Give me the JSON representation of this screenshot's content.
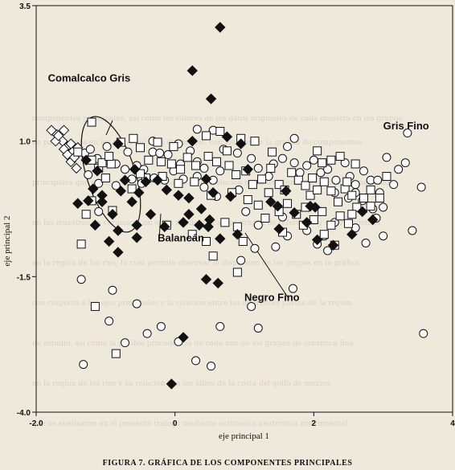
{
  "caption": "FIGURA 7. GRÁFICA DE LOS COMPONENTES PRINCIPALES",
  "chart_data": {
    "type": "scatter",
    "title": "",
    "xlabel": "eje principal 1",
    "ylabel": "eje principal 2",
    "xlim": [
      -2.0,
      4.0
    ],
    "ylim": [
      -4.0,
      3.5
    ],
    "x_ticks": [
      {
        "v": -2.0,
        "label": "-2.0"
      },
      {
        "v": 0,
        "label": "0"
      },
      {
        "v": 2,
        "label": "2"
      },
      {
        "v": 4,
        "label": "4"
      }
    ],
    "y_ticks": [
      {
        "v": 3.5,
        "label": "3.5"
      },
      {
        "v": 1.0,
        "label": "1.0"
      },
      {
        "v": -1.5,
        "label": "-1.5"
      },
      {
        "v": -4.0,
        "label": "-4.0"
      }
    ],
    "group_labels": [
      {
        "text": "Comalcalco Gris",
        "x": -1.83,
        "y": 2.1
      },
      {
        "text": "Gris Fino",
        "x": 3.0,
        "y": 1.22
      },
      {
        "text": "Balancán",
        "x": -0.25,
        "y": -0.85
      },
      {
        "text": "Negro Fino",
        "x": 1.0,
        "y": -1.95
      }
    ],
    "series": [
      {
        "name": "Comalcalco Gris",
        "marker": "diamond",
        "color": "#ffffff",
        "points": [
          [
            -1.78,
            1.2
          ],
          [
            -1.7,
            1.12
          ],
          [
            -1.62,
            1.0
          ],
          [
            -1.55,
            0.9
          ],
          [
            -1.48,
            0.8
          ],
          [
            -1.6,
            1.2
          ],
          [
            -1.72,
            1.0
          ],
          [
            -1.6,
            0.85
          ],
          [
            -1.55,
            0.75
          ],
          [
            -1.5,
            0.62
          ],
          [
            -1.42,
            0.5
          ],
          [
            -1.5,
            0.95
          ],
          [
            -1.4,
            0.88
          ],
          [
            -1.68,
            1.1
          ],
          [
            -1.45,
            0.7
          ]
        ]
      },
      {
        "name": "Gris Fino",
        "marker": "circle",
        "color": "#ffffff",
        "points": [
          [
            -1.3,
            0.78
          ],
          [
            -1.22,
            0.85
          ],
          [
            -1.12,
            0.68
          ],
          [
            -0.98,
            0.9
          ],
          [
            -0.85,
            0.58
          ],
          [
            -0.68,
            0.8
          ],
          [
            -0.72,
            0.48
          ],
          [
            -0.55,
            0.55
          ],
          [
            -0.45,
            0.48
          ],
          [
            -0.32,
            0.8
          ],
          [
            -0.22,
            0.78
          ],
          [
            -0.1,
            0.75
          ],
          [
            0.08,
            0.58
          ],
          [
            0.22,
            0.82
          ],
          [
            0.32,
            0.62
          ],
          [
            0.42,
            0.5
          ],
          [
            0.55,
            0.28
          ],
          [
            0.65,
            0.45
          ],
          [
            0.7,
            0.85
          ],
          [
            0.9,
            0.78
          ],
          [
            1.1,
            0.68
          ],
          [
            1.2,
            0.5
          ],
          [
            1.35,
            0.35
          ],
          [
            1.42,
            0.58
          ],
          [
            1.55,
            0.68
          ],
          [
            1.62,
            0.9
          ],
          [
            1.72,
            0.6
          ],
          [
            1.8,
            0.42
          ],
          [
            1.9,
            0.55
          ],
          [
            2.0,
            0.65
          ],
          [
            2.1,
            0.42
          ],
          [
            2.2,
            0.48
          ],
          [
            2.32,
            0.28
          ],
          [
            2.45,
            0.6
          ],
          [
            2.52,
            0.35
          ],
          [
            2.6,
            0.2
          ],
          [
            2.72,
            0.45
          ],
          [
            2.82,
            0.28
          ],
          [
            2.6,
            0.05
          ],
          [
            2.7,
            -0.1
          ],
          [
            2.85,
            -0.25
          ],
          [
            2.5,
            -0.05
          ],
          [
            2.3,
            0.05
          ],
          [
            2.95,
            0.05
          ],
          [
            3.0,
            -0.22
          ],
          [
            2.92,
            0.28
          ],
          [
            3.22,
            0.48
          ],
          [
            3.42,
            -0.65
          ],
          [
            3.55,
            0.15
          ],
          [
            2.9,
            -0.42
          ],
          [
            2.6,
            -0.6
          ],
          [
            2.3,
            -0.5
          ],
          [
            2.15,
            -0.75
          ],
          [
            2.05,
            -0.9
          ],
          [
            1.9,
            -0.65
          ],
          [
            1.62,
            -0.75
          ],
          [
            1.55,
            -0.4
          ],
          [
            1.2,
            -0.55
          ],
          [
            1.02,
            -0.3
          ],
          [
            0.92,
            0.1
          ],
          [
            0.6,
            -0.02
          ],
          [
            0.42,
            0.15
          ],
          [
            0.32,
            0.35
          ],
          [
            0.12,
            0.3
          ],
          [
            -0.02,
            0.45
          ],
          [
            -0.15,
            0.28
          ],
          [
            -0.3,
            0.32
          ],
          [
            -0.48,
            0.22
          ],
          [
            -0.62,
            0.3
          ],
          [
            -0.85,
            0.18
          ],
          [
            -1.1,
            0.22
          ],
          [
            -1.25,
            0.38
          ],
          [
            2.75,
            -0.88
          ],
          [
            3.0,
            -0.75
          ],
          [
            2.2,
            -1.02
          ],
          [
            1.45,
            -0.95
          ],
          [
            1.15,
            -0.98
          ],
          [
            0.95,
            -1.2
          ],
          [
            1.72,
            1.05
          ],
          [
            0.55,
            1.2
          ],
          [
            0.32,
            1.22
          ],
          [
            0.05,
            0.95
          ],
          [
            -0.32,
            1.0
          ],
          [
            3.35,
            1.15
          ],
          [
            3.05,
            0.7
          ],
          [
            3.32,
            0.6
          ],
          [
            3.15,
            0.2
          ],
          [
            0.65,
            -2.42
          ],
          [
            1.1,
            -2.05
          ],
          [
            0.52,
            -3.15
          ],
          [
            0.3,
            -3.05
          ],
          [
            -0.4,
            -2.55
          ],
          [
            -0.72,
            -2.72
          ],
          [
            -0.95,
            -2.32
          ],
          [
            -0.9,
            -1.75
          ],
          [
            -1.32,
            -3.12
          ],
          [
            -1.35,
            -1.55
          ],
          [
            -0.2,
            -2.42
          ],
          [
            1.2,
            -2.45
          ],
          [
            1.7,
            -1.72
          ],
          [
            3.58,
            -2.55
          ],
          [
            -0.55,
            -2.0
          ],
          [
            0.05,
            -2.7
          ],
          [
            -1.1,
            -0.3
          ]
        ]
      },
      {
        "name": "Negro Fino",
        "marker": "square",
        "color": "#ffffff",
        "points": [
          [
            -1.4,
            0.8
          ],
          [
            -1.2,
            0.65
          ],
          [
            -1.1,
            0.5
          ],
          [
            -0.92,
            0.58
          ],
          [
            -0.78,
            0.98
          ],
          [
            -0.6,
            1.05
          ],
          [
            -0.5,
            0.88
          ],
          [
            -0.38,
            0.65
          ],
          [
            -0.2,
            0.62
          ],
          [
            -0.05,
            0.58
          ],
          [
            0.08,
            0.48
          ],
          [
            0.18,
            0.7
          ],
          [
            0.3,
            0.55
          ],
          [
            0.48,
            0.72
          ],
          [
            0.6,
            0.62
          ],
          [
            0.78,
            0.55
          ],
          [
            0.88,
            0.38
          ],
          [
            1.02,
            0.45
          ],
          [
            1.12,
            0.2
          ],
          [
            1.25,
            0.3
          ],
          [
            1.38,
            0.5
          ],
          [
            1.5,
            0.2
          ],
          [
            1.58,
            0.1
          ],
          [
            1.68,
            0.42
          ],
          [
            1.78,
            0.28
          ],
          [
            1.88,
            0.18
          ],
          [
            1.95,
            0.0
          ],
          [
            2.05,
            0.1
          ],
          [
            2.15,
            0.25
          ],
          [
            2.25,
            0.08
          ],
          [
            2.35,
            -0.12
          ],
          [
            2.45,
            0.12
          ],
          [
            2.55,
            0.0
          ],
          [
            2.62,
            -0.22
          ],
          [
            2.72,
            -0.05
          ],
          [
            2.82,
            0.1
          ],
          [
            1.5,
            -0.3
          ],
          [
            1.62,
            -0.15
          ],
          [
            1.75,
            -0.35
          ],
          [
            1.88,
            -0.22
          ],
          [
            2.0,
            -0.45
          ],
          [
            2.12,
            -0.3
          ],
          [
            2.25,
            -0.55
          ],
          [
            2.38,
            -0.38
          ],
          [
            2.5,
            -0.52
          ],
          [
            1.3,
            -0.42
          ],
          [
            1.2,
            -0.18
          ],
          [
            1.05,
            -0.08
          ],
          [
            0.82,
            0.05
          ],
          [
            0.52,
            0.0
          ],
          [
            0.28,
            0.25
          ],
          [
            0.05,
            0.22
          ],
          [
            -0.18,
            0.35
          ],
          [
            -0.42,
            0.32
          ],
          [
            -0.62,
            0.12
          ],
          [
            -1.0,
            0.32
          ],
          [
            -1.05,
            0.6
          ],
          [
            -0.5,
            0.4
          ],
          [
            0.95,
            1.05
          ],
          [
            1.4,
            0.8
          ],
          [
            1.15,
            1.0
          ],
          [
            0.75,
            0.82
          ],
          [
            -0.02,
            0.9
          ],
          [
            -0.25,
            0.98
          ],
          [
            0.45,
            1.1
          ],
          [
            2.05,
            0.82
          ],
          [
            2.25,
            0.65
          ],
          [
            2.38,
            0.72
          ],
          [
            2.6,
            0.58
          ],
          [
            2.12,
            0.6
          ],
          [
            2.48,
            0.25
          ],
          [
            2.55,
            -0.35
          ],
          [
            2.82,
            -0.2
          ],
          [
            2.95,
            -0.05
          ],
          [
            3.05,
            0.35
          ],
          [
            2.15,
            -0.72
          ],
          [
            1.85,
            -0.55
          ],
          [
            1.55,
            -0.68
          ],
          [
            0.9,
            -0.58
          ],
          [
            0.72,
            -0.5
          ],
          [
            -0.12,
            -0.55
          ],
          [
            -0.9,
            -0.28
          ],
          [
            -1.28,
            -0.35
          ],
          [
            -1.35,
            -0.9
          ],
          [
            0.25,
            -0.72
          ],
          [
            0.45,
            -0.85
          ],
          [
            2.3,
            -0.92
          ],
          [
            -1.2,
            -0.1
          ],
          [
            0.98,
            -0.85
          ],
          [
            -0.85,
            -2.92
          ],
          [
            0.9,
            -1.42
          ],
          [
            0.55,
            -1.12
          ],
          [
            0.65,
            1.18
          ],
          [
            1.98,
            0.32
          ],
          [
            1.35,
            0.05
          ],
          [
            -1.2,
            1.35
          ],
          [
            -0.95,
            0.72
          ],
          [
            -1.15,
            -2.05
          ]
        ]
      },
      {
        "name": "Balancán",
        "marker": "diamond",
        "color": "#111111",
        "points": [
          [
            -1.28,
            0.65
          ],
          [
            -1.12,
            0.45
          ],
          [
            -1.18,
            0.12
          ],
          [
            -1.05,
            -0.12
          ],
          [
            -0.9,
            -0.35
          ],
          [
            -0.72,
            0.28
          ],
          [
            -0.58,
            0.48
          ],
          [
            -0.52,
            0.05
          ],
          [
            -0.42,
            0.25
          ],
          [
            -0.25,
            0.28
          ],
          [
            -0.12,
            0.1
          ],
          [
            0.05,
            0.0
          ],
          [
            0.2,
            -0.05
          ],
          [
            0.38,
            -0.25
          ],
          [
            0.12,
            -0.5
          ],
          [
            -0.15,
            -0.58
          ],
          [
            -0.35,
            -0.35
          ],
          [
            -0.62,
            -0.12
          ],
          [
            -0.82,
            -0.65
          ],
          [
            -1.15,
            -0.55
          ],
          [
            -1.4,
            -0.15
          ],
          [
            -1.05,
            0.0
          ],
          [
            -0.78,
            0.08
          ],
          [
            0.55,
            0.05
          ],
          [
            0.45,
            0.3
          ],
          [
            0.65,
            -0.8
          ],
          [
            1.05,
            0.48
          ],
          [
            1.38,
            -0.12
          ],
          [
            1.72,
            -0.32
          ],
          [
            1.9,
            -0.5
          ],
          [
            1.5,
            -0.62
          ],
          [
            2.05,
            -0.82
          ],
          [
            2.28,
            -0.92
          ],
          [
            2.55,
            -0.72
          ],
          [
            2.85,
            -0.45
          ],
          [
            0.95,
            0.95
          ],
          [
            0.75,
            1.08
          ],
          [
            -0.82,
            0.95
          ],
          [
            0.8,
            -0.02
          ],
          [
            -1.25,
            -0.1
          ],
          [
            1.6,
            0.08
          ],
          [
            2.7,
            -0.3
          ],
          [
            -0.95,
            -0.85
          ],
          [
            0.5,
            -0.45
          ],
          [
            -0.55,
            -0.78
          ],
          [
            0.9,
            -0.72
          ],
          [
            -0.55,
            -0.55
          ],
          [
            0.35,
            -0.55
          ],
          [
            0.25,
            2.3
          ],
          [
            0.65,
            3.1
          ],
          [
            0.52,
            1.78
          ],
          [
            0.25,
            1.0
          ],
          [
            0.2,
            -0.35
          ],
          [
            1.95,
            -0.2
          ],
          [
            0.48,
            -0.58
          ],
          [
            -0.82,
            -1.05
          ],
          [
            0.62,
            -1.62
          ],
          [
            0.45,
            -1.55
          ],
          [
            0.12,
            -2.62
          ],
          [
            -0.05,
            -3.48
          ],
          [
            1.48,
            -0.2
          ],
          [
            2.02,
            -0.22
          ]
        ]
      }
    ]
  }
}
